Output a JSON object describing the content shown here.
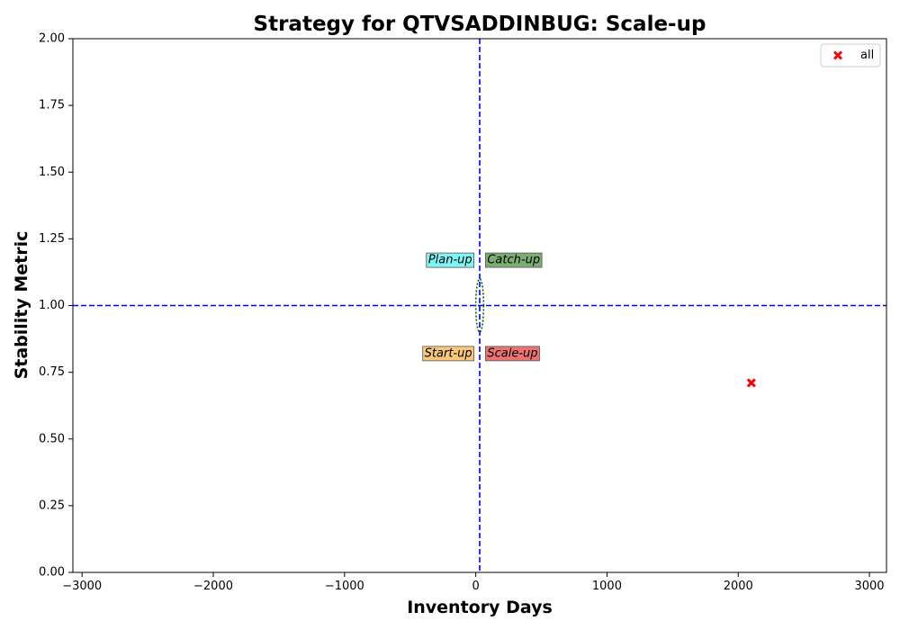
{
  "chart_data": {
    "type": "scatter",
    "title": "Strategy for QTVSADDINBUG: Scale-up",
    "xlabel": "Inventory Days",
    "ylabel": "Stability Metric",
    "xlim": [
      -3070,
      3130
    ],
    "ylim": [
      0,
      2
    ],
    "xticks": [
      -3000,
      -2000,
      -1000,
      0,
      1000,
      2000,
      3000
    ],
    "xtick_labels": [
      "−3000",
      "−2000",
      "−1000",
      "0",
      "1000",
      "2000",
      "3000"
    ],
    "yticks": [
      0,
      0.25,
      0.5,
      0.75,
      1.0,
      1.25,
      1.5,
      1.75,
      2.0
    ],
    "ytick_labels": [
      "0.00",
      "0.25",
      "0.50",
      "0.75",
      "1.00",
      "1.25",
      "1.50",
      "1.75",
      "2.00"
    ],
    "grid": false,
    "reference_lines": {
      "x": 30,
      "y": 1.0,
      "color": "#0000ff",
      "style": "dashed"
    },
    "quadrants": [
      {
        "label": "Plan-up",
        "color": "#7ff6f5",
        "anchor_x": 0,
        "anchor_y": 1.17,
        "align": "right"
      },
      {
        "label": "Catch-up",
        "color": "#7cae73",
        "anchor_x": 60,
        "anchor_y": 1.17,
        "align": "left"
      },
      {
        "label": "Start-up",
        "color": "#f8c878",
        "anchor_x": 0,
        "anchor_y": 0.82,
        "align": "right"
      },
      {
        "label": "Scale-up",
        "color": "#ed7373",
        "anchor_x": 60,
        "anchor_y": 0.82,
        "align": "left"
      }
    ],
    "ellipse": {
      "cx": 30,
      "cy": 1.0,
      "rx": 30,
      "ry": 0.1,
      "color": "#006400",
      "style": "dotted"
    },
    "series": [
      {
        "name": "all",
        "marker": "X",
        "color": "#ff0000",
        "points": [
          {
            "x": 2100,
            "y": 0.71
          }
        ]
      }
    ],
    "legend": {
      "position": "top-right",
      "entries": [
        "all"
      ]
    }
  }
}
